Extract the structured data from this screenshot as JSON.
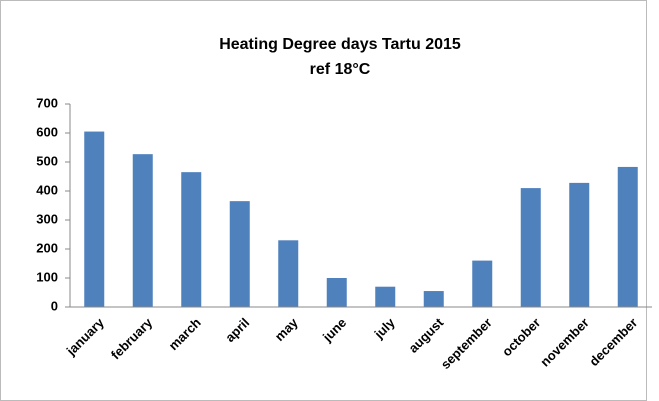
{
  "chart_data": {
    "type": "bar",
    "title": "Heating Degree days Tartu 2015",
    "subtitle": "ref 18°C",
    "categories": [
      "january",
      "february",
      "march",
      "april",
      "may",
      "june",
      "july",
      "august",
      "september",
      "october",
      "november",
      "december"
    ],
    "values": [
      605,
      527,
      465,
      365,
      230,
      100,
      70,
      55,
      160,
      410,
      428,
      483
    ],
    "color": "#4f81bd",
    "ylim": [
      0,
      700
    ],
    "yticks": [
      0,
      100,
      200,
      300,
      400,
      500,
      600,
      700
    ],
    "grid": false
  }
}
